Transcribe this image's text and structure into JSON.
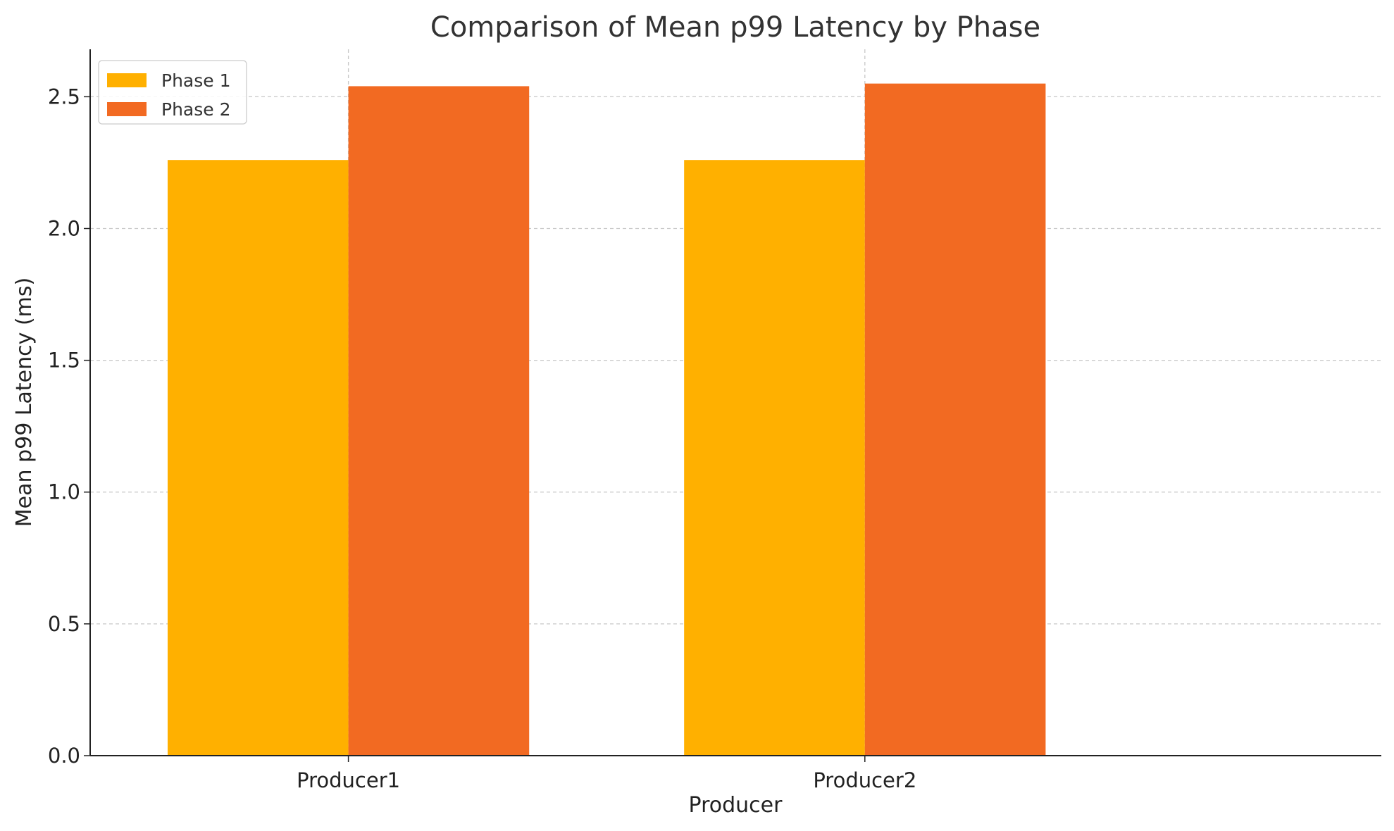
{
  "chart_data": {
    "type": "bar",
    "title": "Comparison of Mean p99 Latency by Phase",
    "xlabel": "Producer",
    "ylabel": "Mean p99 Latency (ms)",
    "categories": [
      "Producer1",
      "Producer2"
    ],
    "series": [
      {
        "name": "Phase 1",
        "color": "#FFB000",
        "values": [
          2.26,
          2.26
        ]
      },
      {
        "name": "Phase 2",
        "color": "#F26A22",
        "values": [
          2.54,
          2.55
        ]
      }
    ],
    "ylim": [
      0,
      2.68
    ],
    "yticks": [
      "0.0",
      "0.5",
      "1.0",
      "1.5",
      "2.0",
      "2.5"
    ],
    "grid": true,
    "grid_style": "dashed",
    "legend_position": "top-left"
  }
}
